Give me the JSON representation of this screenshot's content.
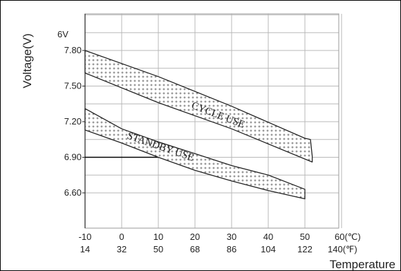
{
  "chart_data": {
    "type": "area",
    "title": "",
    "ylabel": "Voltage(V)",
    "xlabel": "Temperature",
    "y_unit_label": "6V",
    "y_ticks": [
      {
        "value": 7.8,
        "label": "7.80"
      },
      {
        "value": 7.5,
        "label": "7.50"
      },
      {
        "value": 7.2,
        "label": "7.20"
      },
      {
        "value": 6.9,
        "label": "6.90"
      },
      {
        "value": 6.6,
        "label": "6.60"
      }
    ],
    "ylim": [
      6.6,
      8.1
    ],
    "xlim": [
      -10,
      60
    ],
    "x_ticks_celsius": [
      {
        "value": -10,
        "label": "-10"
      },
      {
        "value": 0,
        "label": "0"
      },
      {
        "value": 10,
        "label": "10"
      },
      {
        "value": 20,
        "label": "20"
      },
      {
        "value": 30,
        "label": "30"
      },
      {
        "value": 40,
        "label": "40"
      },
      {
        "value": 50,
        "label": "50"
      },
      {
        "value": 60,
        "label": "60(℃)"
      }
    ],
    "x_ticks_fahrenheit": [
      {
        "value": -10,
        "label": "14"
      },
      {
        "value": 0,
        "label": "32"
      },
      {
        "value": 10,
        "label": "50"
      },
      {
        "value": 20,
        "label": "68"
      },
      {
        "value": 30,
        "label": "86"
      },
      {
        "value": 40,
        "label": "104"
      },
      {
        "value": 50,
        "label": "122"
      },
      {
        "value": 60,
        "label": "140(℉)"
      }
    ],
    "grid": true,
    "reference_line": {
      "y": 6.9
    },
    "series": [
      {
        "name": "CYCLE USE",
        "upper": [
          [
            -10,
            7.8
          ],
          [
            10,
            7.58
          ],
          [
            30,
            7.33
          ],
          [
            50,
            7.06
          ],
          [
            51.5,
            7.05
          ],
          [
            52,
            6.91
          ]
        ],
        "lower": [
          [
            -10,
            7.61
          ],
          [
            10,
            7.36
          ],
          [
            30,
            7.14
          ],
          [
            52,
            6.86
          ]
        ]
      },
      {
        "name": "STANDBY USE",
        "upper": [
          [
            -10,
            7.31
          ],
          [
            0,
            7.14
          ],
          [
            10,
            7.03
          ],
          [
            20,
            6.93
          ],
          [
            30,
            6.83
          ],
          [
            40,
            6.75
          ],
          [
            50,
            6.63
          ]
        ],
        "lower": [
          [
            -10,
            7.13
          ],
          [
            0,
            7.02
          ],
          [
            10,
            6.9
          ],
          [
            20,
            6.79
          ],
          [
            30,
            6.7
          ],
          [
            40,
            6.62
          ],
          [
            50,
            6.55
          ]
        ]
      }
    ]
  }
}
